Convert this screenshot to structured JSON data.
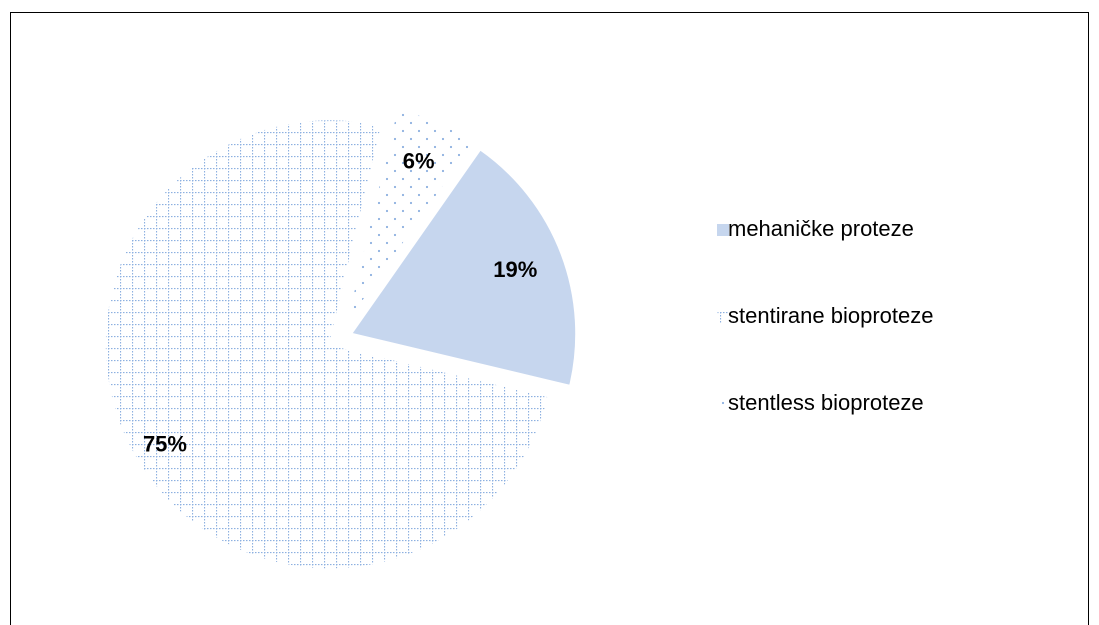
{
  "chart_data": {
    "type": "pie",
    "categories": [
      "mehaničke proteze",
      "stentirane bioproteze",
      "stentless bioproteze"
    ],
    "values": [
      19,
      75,
      6
    ],
    "value_labels": [
      "19%",
      "75%",
      "6%"
    ],
    "colors": [
      "#c6d6ee",
      "#8db0e0",
      "#8db0e0"
    ],
    "patterns": [
      "solid",
      "grid",
      "dots"
    ],
    "legend": "right"
  }
}
